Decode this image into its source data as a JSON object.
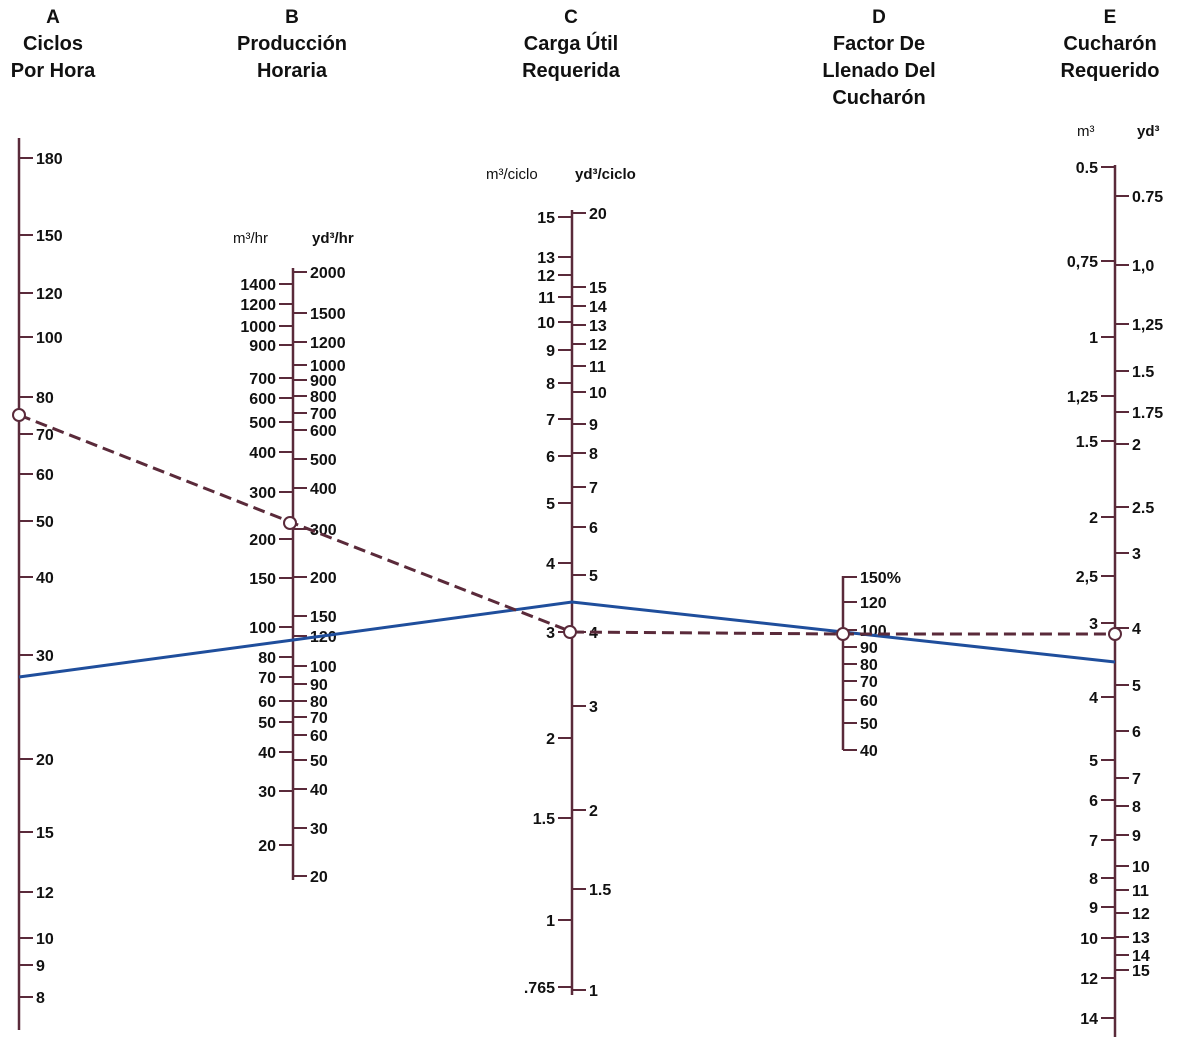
{
  "columns": {
    "a": {
      "letter": "A",
      "line1": "Ciclos",
      "line2": "Por Hora",
      "line3": ""
    },
    "b": {
      "letter": "B",
      "line1": "Producción",
      "line2": "Horaria",
      "line3": ""
    },
    "c": {
      "letter": "C",
      "line1": "Carga Útil",
      "line2": "Requerida",
      "line3": ""
    },
    "d": {
      "letter": "D",
      "line1": "Factor De",
      "line2": "Llenado Del",
      "line3": "Cucharón"
    },
    "e": {
      "letter": "E",
      "line1": "Cucharón",
      "line2": "Requerido",
      "line3": ""
    }
  },
  "units": {
    "b_left": "m³/hr",
    "b_right": "yd³/hr",
    "c_left": "m³/ciclo",
    "c_right": "yd³/ciclo",
    "e_left": "m³",
    "e_right": "yd³"
  },
  "colors": {
    "scale": "#5a2a3a",
    "solid_line": "#1f4e9c",
    "dashed_line": "#5a2a3a",
    "text": "#111111"
  },
  "scales": {
    "a": [
      "180",
      "150",
      "120",
      "100",
      "80",
      "70",
      "60",
      "50",
      "40",
      "30",
      "20",
      "15",
      "12",
      "10",
      "9",
      "8"
    ],
    "b_left": [
      "1400",
      "1200",
      "1000",
      "900",
      "700",
      "600",
      "500",
      "400",
      "300",
      "200",
      "150",
      "100",
      "80",
      "70",
      "60",
      "50",
      "40",
      "30",
      "20"
    ],
    "b_right": [
      "2000",
      "1500",
      "1200",
      "1000",
      "900",
      "800",
      "700",
      "600",
      "500",
      "400",
      "300",
      "200",
      "150",
      "120",
      "100",
      "90",
      "80",
      "70",
      "60",
      "50",
      "40",
      "30",
      "20"
    ],
    "c_left": [
      "15",
      "13",
      "12",
      "11",
      "10",
      "9",
      "8",
      "7",
      "6",
      "5",
      "4",
      "3",
      "2",
      "1.5",
      "1",
      ".765"
    ],
    "c_right": [
      "20",
      "15",
      "14",
      "13",
      "12",
      "11",
      "10",
      "9",
      "8",
      "7",
      "6",
      "5",
      "4",
      "3",
      "2",
      "1.5",
      "1"
    ],
    "d": [
      "150%",
      "120",
      "100",
      "90",
      "80",
      "70",
      "60",
      "50",
      "40"
    ],
    "e_left": [
      "0.5",
      "0,75",
      "1",
      "1,25",
      "1.5",
      "2",
      "2,5",
      "3",
      "4",
      "5",
      "6",
      "7",
      "8",
      "9",
      "10",
      "12",
      "14"
    ],
    "e_right": [
      "0.75",
      "1,0",
      "1,25",
      "1.5",
      "1.75",
      "2",
      "2.5",
      "3",
      "4",
      "5",
      "6",
      "7",
      "8",
      "9",
      "10",
      "11",
      "12",
      "13",
      "14",
      "15"
    ]
  },
  "example_lines": [
    {
      "style": "solid",
      "color": "#1f4e9c"
    },
    {
      "style": "dashed",
      "color": "#5a2a3a"
    }
  ]
}
